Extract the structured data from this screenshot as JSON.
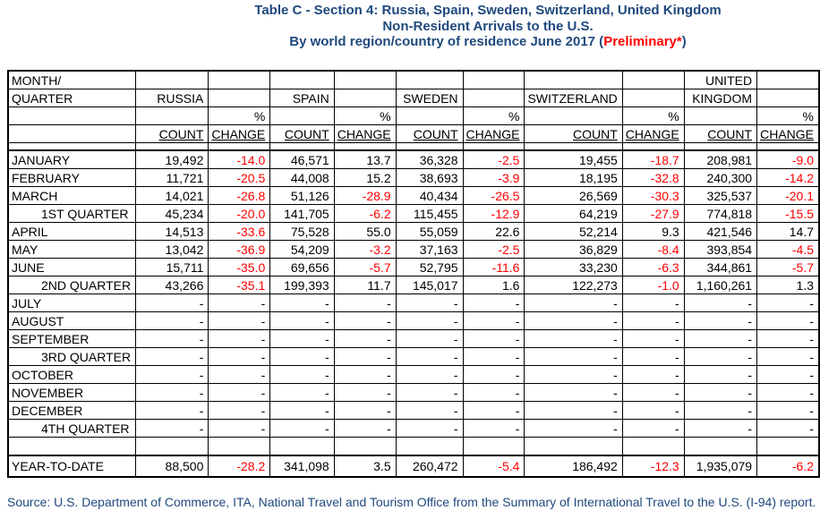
{
  "title": {
    "line1": "Table C - Section 4: Russia, Spain, Sweden, Switzerland, United Kingdom",
    "line2": "Non-Resident Arrivals to the U.S.",
    "line3_prefix": "By world region/country of residence June 2017 (",
    "line3_highlight": "Preliminary*",
    "line3_suffix": ")"
  },
  "colors": {
    "title_navy": "#1F497D",
    "negative_red": "#FF0000",
    "table_border": "#000000"
  },
  "table": {
    "header": {
      "month_label": "MONTH/",
      "quarter_label": "QUARTER",
      "country_line1": [
        "",
        "",
        "",
        "",
        "UNITED"
      ],
      "country_line2": [
        "RUSSIA",
        "SPAIN",
        "SWEDEN",
        "SWITZERLAND",
        "KINGDOM"
      ],
      "pct_label": "%",
      "count_label": "COUNT",
      "change_label": "CHANGE"
    },
    "countries": [
      "RUSSIA",
      "SPAIN",
      "SWEDEN",
      "SWITZERLAND",
      "UNITED KINGDOM"
    ],
    "rows": [
      {
        "label": "JANUARY",
        "indent": false,
        "values": [
          "19,492",
          "-14.0",
          "46,571",
          "13.7",
          "36,328",
          "-2.5",
          "19,455",
          "-18.7",
          "208,981",
          "-9.0"
        ]
      },
      {
        "label": "FEBRUARY",
        "indent": false,
        "values": [
          "11,721",
          "-20.5",
          "44,008",
          "15.2",
          "38,693",
          "-3.9",
          "18,195",
          "-32.8",
          "240,300",
          "-14.2"
        ]
      },
      {
        "label": "MARCH",
        "indent": false,
        "values": [
          "14,021",
          "-26.8",
          "51,126",
          "-28.9",
          "40,434",
          "-26.5",
          "26,569",
          "-30.3",
          "325,537",
          "-20.1"
        ]
      },
      {
        "label": "1ST QUARTER",
        "indent": true,
        "values": [
          "45,234",
          "-20.0",
          "141,705",
          "-6.2",
          "115,455",
          "-12.9",
          "64,219",
          "-27.9",
          "774,818",
          "-15.5"
        ]
      },
      {
        "label": "APRIL",
        "indent": false,
        "values": [
          "14,513",
          "-33.6",
          "75,528",
          "55.0",
          "55,059",
          "22.6",
          "52,214",
          "9.3",
          "421,546",
          "14.7"
        ]
      },
      {
        "label": "MAY",
        "indent": false,
        "values": [
          "13,042",
          "-36.9",
          "54,209",
          "-3.2",
          "37,163",
          "-2.5",
          "36,829",
          "-8.4",
          "393,854",
          "-4.5"
        ]
      },
      {
        "label": "JUNE",
        "indent": false,
        "values": [
          "15,711",
          "-35.0",
          "69,656",
          "-5.7",
          "52,795",
          "-11.6",
          "33,230",
          "-6.3",
          "344,861",
          "-5.7"
        ]
      },
      {
        "label": "2ND QUARTER",
        "indent": true,
        "values": [
          "43,266",
          "-35.1",
          "199,393",
          "11.7",
          "145,017",
          "1.6",
          "122,273",
          "-1.0",
          "1,160,261",
          "1.3"
        ]
      },
      {
        "label": "JULY",
        "indent": false,
        "values": [
          "-",
          "-",
          "-",
          "-",
          "-",
          "-",
          "-",
          "-",
          "-",
          "-"
        ]
      },
      {
        "label": "AUGUST",
        "indent": false,
        "values": [
          "-",
          "-",
          "-",
          "-",
          "-",
          "-",
          "-",
          "-",
          "-",
          "-"
        ]
      },
      {
        "label": "SEPTEMBER",
        "indent": false,
        "values": [
          "-",
          "-",
          "-",
          "-",
          "-",
          "-",
          "-",
          "-",
          "-",
          "-"
        ]
      },
      {
        "label": "3RD QUARTER",
        "indent": true,
        "values": [
          "-",
          "-",
          "-",
          "-",
          "-",
          "-",
          "-",
          "-",
          "-",
          "-"
        ]
      },
      {
        "label": "OCTOBER",
        "indent": false,
        "values": [
          "-",
          "-",
          "-",
          "-",
          "-",
          "-",
          "-",
          "-",
          "-",
          "-"
        ]
      },
      {
        "label": "NOVEMBER",
        "indent": false,
        "values": [
          "-",
          "-",
          "-",
          "-",
          "-",
          "-",
          "-",
          "-",
          "-",
          "-"
        ]
      },
      {
        "label": "DECEMBER",
        "indent": false,
        "values": [
          "-",
          "-",
          "-",
          "-",
          "-",
          "-",
          "-",
          "-",
          "-",
          "-"
        ]
      },
      {
        "label": "4TH QUARTER",
        "indent": true,
        "values": [
          "-",
          "-",
          "-",
          "-",
          "-",
          "-",
          "-",
          "-",
          "-",
          "-"
        ]
      }
    ],
    "ytd": {
      "label": "YEAR-TO-DATE",
      "values": [
        "88,500",
        "-28.2",
        "341,098",
        "3.5",
        "260,472",
        "-5.4",
        "186,492",
        "-12.3",
        "1,935,079",
        "-6.2"
      ]
    }
  },
  "source": "Source: U.S. Department of Commerce, ITA, National Travel and Tourism Office from the Summary of International Travel to the U.S. (I-94) report."
}
